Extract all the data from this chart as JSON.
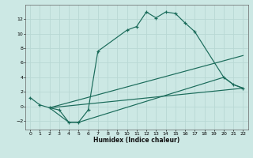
{
  "xlabel": "Humidex (Indice chaleur)",
  "bg_color": "#cce8e4",
  "grid_color": "#b8d8d4",
  "line_color": "#1a6b5a",
  "xlim": [
    -0.5,
    22.5
  ],
  "ylim": [
    -3.2,
    14.0
  ],
  "xticks": [
    0,
    1,
    2,
    3,
    4,
    5,
    6,
    7,
    8,
    9,
    10,
    11,
    12,
    13,
    14,
    15,
    16,
    17,
    18,
    19,
    20,
    21,
    22
  ],
  "yticks": [
    -2,
    0,
    2,
    4,
    6,
    8,
    10,
    12
  ],
  "line1_x": [
    0,
    1,
    2,
    3,
    4,
    5,
    6,
    7,
    10,
    11,
    12,
    13,
    14,
    15,
    16,
    17,
    20,
    21,
    22
  ],
  "line1_y": [
    1.2,
    0.2,
    -0.2,
    -0.5,
    -2.2,
    -2.2,
    -0.5,
    7.6,
    10.5,
    11.0,
    13.0,
    12.2,
    13.0,
    12.8,
    11.5,
    10.3,
    4.0,
    3.0,
    2.5
  ],
  "line2_x": [
    2,
    22
  ],
  "line2_y": [
    -0.2,
    7.0
  ],
  "line3_x": [
    2,
    22
  ],
  "line3_y": [
    -0.2,
    2.5
  ],
  "line4_x": [
    2,
    4,
    5,
    20,
    21,
    22
  ],
  "line4_y": [
    -0.2,
    -2.2,
    -2.2,
    4.0,
    3.0,
    2.5
  ]
}
